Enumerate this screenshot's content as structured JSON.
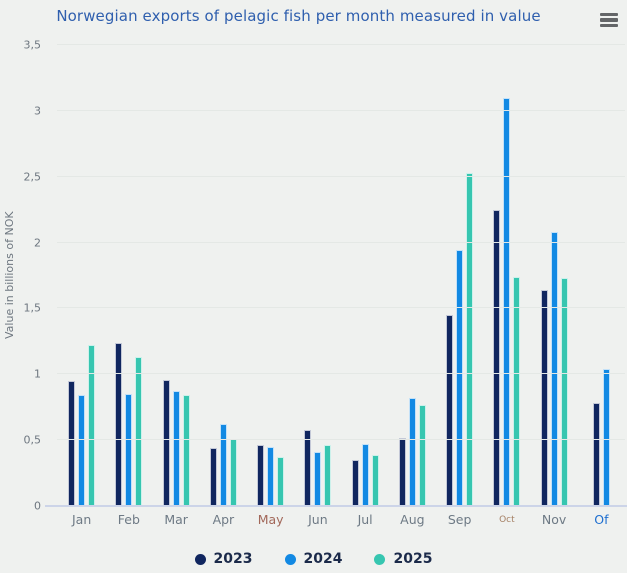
{
  "icons": {
    "context_menu": "hamburger-menu-icon"
  },
  "chart_data": {
    "type": "bar",
    "title": "Norwegian exports of pelagic fish per month measured in value",
    "xlabel": "",
    "ylabel": "Value in billions of NOK",
    "ylim": [
      0,
      3.5
    ],
    "grid": true,
    "legend_position": "bottom",
    "background_color": "#eff1ef",
    "title_color": "#2f5fae",
    "axis_line_color": "#ccd4e8",
    "yticks": [
      {
        "value": 0,
        "label": "0"
      },
      {
        "value": 0.5,
        "label": "0,5"
      },
      {
        "value": 1,
        "label": "1"
      },
      {
        "value": 1.5,
        "label": "1,5"
      },
      {
        "value": 2,
        "label": "2"
      },
      {
        "value": 2.5,
        "label": "2,5"
      },
      {
        "value": 3,
        "label": "3"
      },
      {
        "value": 3.5,
        "label": "3,5"
      }
    ],
    "categories": [
      "Jan",
      "Feb",
      "Mar",
      "Apr",
      "May",
      "Jun",
      "Jul",
      "Aug",
      "Sep",
      "Oct",
      "Nov",
      "Of"
    ],
    "category_label_overrides": {
      "May": {
        "color": "#a2685a"
      },
      "Oct": {
        "color": "#a58064",
        "font_size": "9px"
      },
      "Of": {
        "color": "#1e6fd0"
      }
    },
    "series": [
      {
        "name": "2023",
        "color": "#10265f",
        "values": [
          0.95,
          1.24,
          0.96,
          0.44,
          0.46,
          0.58,
          0.35,
          0.52,
          1.45,
          2.25,
          1.64,
          0.78
        ]
      },
      {
        "name": "2024",
        "color": "#1289e3",
        "values": [
          0.84,
          0.85,
          0.87,
          0.62,
          0.45,
          0.41,
          0.47,
          0.82,
          1.94,
          3.1,
          2.08,
          1.04
        ]
      },
      {
        "name": "2025",
        "color": "#36c6b0",
        "values": [
          1.22,
          1.13,
          0.84,
          0.51,
          0.37,
          0.46,
          0.39,
          0.77,
          2.53,
          1.74,
          1.73,
          null
        ]
      }
    ]
  }
}
